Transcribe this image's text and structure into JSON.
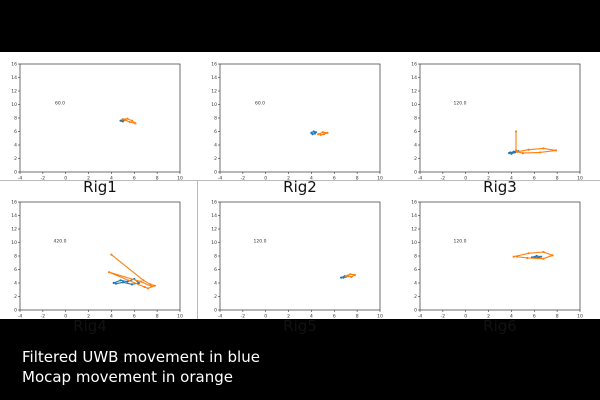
{
  "colors": {
    "uwb": "#1f77b4",
    "mocap": "#ff7f0e"
  },
  "caption": {
    "line1": "Filtered UWB movement in blue",
    "line2": "Mocap movement in orange"
  },
  "chart_data": [
    {
      "type": "line",
      "label": "Rig1",
      "annotation": "60.0",
      "xlim": [
        -4,
        10
      ],
      "ylim": [
        0,
        16
      ],
      "xticks": [
        -4,
        -2,
        0,
        2,
        4,
        6,
        8,
        10
      ],
      "yticks": [
        0,
        2,
        4,
        6,
        8,
        10,
        12,
        14,
        16
      ],
      "series": [
        {
          "key": "uwb",
          "x": [
            4.8,
            5.0,
            5.2,
            5.0,
            4.9
          ],
          "y": [
            7.6,
            7.8,
            7.7,
            7.5,
            7.6
          ]
        },
        {
          "key": "mocap",
          "x": [
            5.0,
            5.4,
            5.8,
            6.1,
            5.6,
            5.2
          ],
          "y": [
            7.8,
            7.9,
            7.6,
            7.2,
            7.4,
            7.7
          ]
        }
      ]
    },
    {
      "type": "line",
      "label": "Rig2",
      "annotation": "60.0",
      "xlim": [
        -4,
        10
      ],
      "ylim": [
        0,
        16
      ],
      "xticks": [
        -4,
        -2,
        0,
        2,
        4,
        6,
        8,
        10
      ],
      "yticks": [
        0,
        2,
        4,
        6,
        8,
        10,
        12,
        14,
        16
      ],
      "series": [
        {
          "key": "uwb",
          "x": [
            4.0,
            4.2,
            4.4,
            4.3,
            4.1,
            4.0
          ],
          "y": [
            5.8,
            6.0,
            5.9,
            5.7,
            5.6,
            5.8
          ]
        },
        {
          "key": "mocap",
          "x": [
            4.6,
            5.0,
            5.4,
            5.1,
            4.8
          ],
          "y": [
            5.6,
            5.9,
            5.8,
            5.6,
            5.5
          ]
        }
      ]
    },
    {
      "type": "line",
      "label": "Rig3",
      "annotation": "120.0",
      "xlim": [
        -4,
        10
      ],
      "ylim": [
        0,
        16
      ],
      "xticks": [
        -4,
        -2,
        0,
        2,
        4,
        6,
        8,
        10
      ],
      "yticks": [
        0,
        2,
        4,
        6,
        8,
        10,
        12,
        14,
        16
      ],
      "series": [
        {
          "key": "uwb",
          "x": [
            3.8,
            4.2,
            4.6,
            4.3,
            4.0,
            3.9
          ],
          "y": [
            2.8,
            3.0,
            3.1,
            2.9,
            2.7,
            2.9
          ]
        },
        {
          "key": "mocap",
          "x": [
            4.4,
            4.4,
            4.5,
            5.5,
            6.8,
            7.9,
            6.5,
            5.0,
            4.5
          ],
          "y": [
            6.0,
            3.2,
            3.0,
            3.3,
            3.5,
            3.2,
            2.9,
            2.8,
            3.0
          ]
        }
      ]
    },
    {
      "type": "line",
      "label": "Rig4",
      "annotation": "420.0",
      "xlim": [
        -4,
        10
      ],
      "ylim": [
        0,
        16
      ],
      "xticks": [
        -4,
        -2,
        0,
        2,
        4,
        6,
        8,
        10
      ],
      "yticks": [
        0,
        2,
        4,
        6,
        8,
        10,
        12,
        14,
        16
      ],
      "series": [
        {
          "key": "uwb",
          "x": [
            4.2,
            4.8,
            5.4,
            6.0,
            6.4,
            5.8,
            5.0,
            4.4
          ],
          "y": [
            4.0,
            4.4,
            4.2,
            4.6,
            4.0,
            3.8,
            4.1,
            3.9
          ]
        },
        {
          "key": "mocap",
          "x": [
            4.0,
            6.8,
            7.4,
            7.8,
            7.2,
            6.9,
            3.8,
            6.6,
            7.5
          ],
          "y": [
            8.2,
            4.4,
            3.8,
            3.6,
            3.2,
            3.4,
            5.6,
            4.2,
            3.5
          ]
        }
      ]
    },
    {
      "type": "line",
      "label": "Rig5",
      "annotation": "120.0",
      "xlim": [
        -4,
        10
      ],
      "ylim": [
        0,
        16
      ],
      "xticks": [
        -4,
        -2,
        0,
        2,
        4,
        6,
        8,
        10
      ],
      "yticks": [
        0,
        2,
        4,
        6,
        8,
        10,
        12,
        14,
        16
      ],
      "series": [
        {
          "key": "uwb",
          "x": [
            6.6,
            6.9,
            7.2,
            7.0,
            6.8
          ],
          "y": [
            4.8,
            5.0,
            5.1,
            4.9,
            4.8
          ]
        },
        {
          "key": "mocap",
          "x": [
            7.0,
            7.4,
            7.8,
            7.5,
            7.2
          ],
          "y": [
            5.0,
            5.3,
            5.2,
            4.9,
            5.0
          ]
        }
      ]
    },
    {
      "type": "line",
      "label": "Rig6",
      "annotation": "120.0",
      "xlim": [
        -4,
        10
      ],
      "ylim": [
        0,
        16
      ],
      "xticks": [
        -4,
        -2,
        0,
        2,
        4,
        6,
        8,
        10
      ],
      "yticks": [
        0,
        2,
        4,
        6,
        8,
        10,
        12,
        14,
        16
      ],
      "series": [
        {
          "key": "uwb",
          "x": [
            5.8,
            6.2,
            6.6,
            6.3,
            6.0
          ],
          "y": [
            7.8,
            8.0,
            7.9,
            7.7,
            7.8
          ]
        },
        {
          "key": "mocap",
          "x": [
            4.2,
            5.5,
            6.8,
            7.6,
            6.8,
            5.4,
            4.5
          ],
          "y": [
            7.9,
            8.4,
            8.6,
            8.1,
            7.6,
            7.7,
            7.9
          ]
        }
      ]
    }
  ]
}
